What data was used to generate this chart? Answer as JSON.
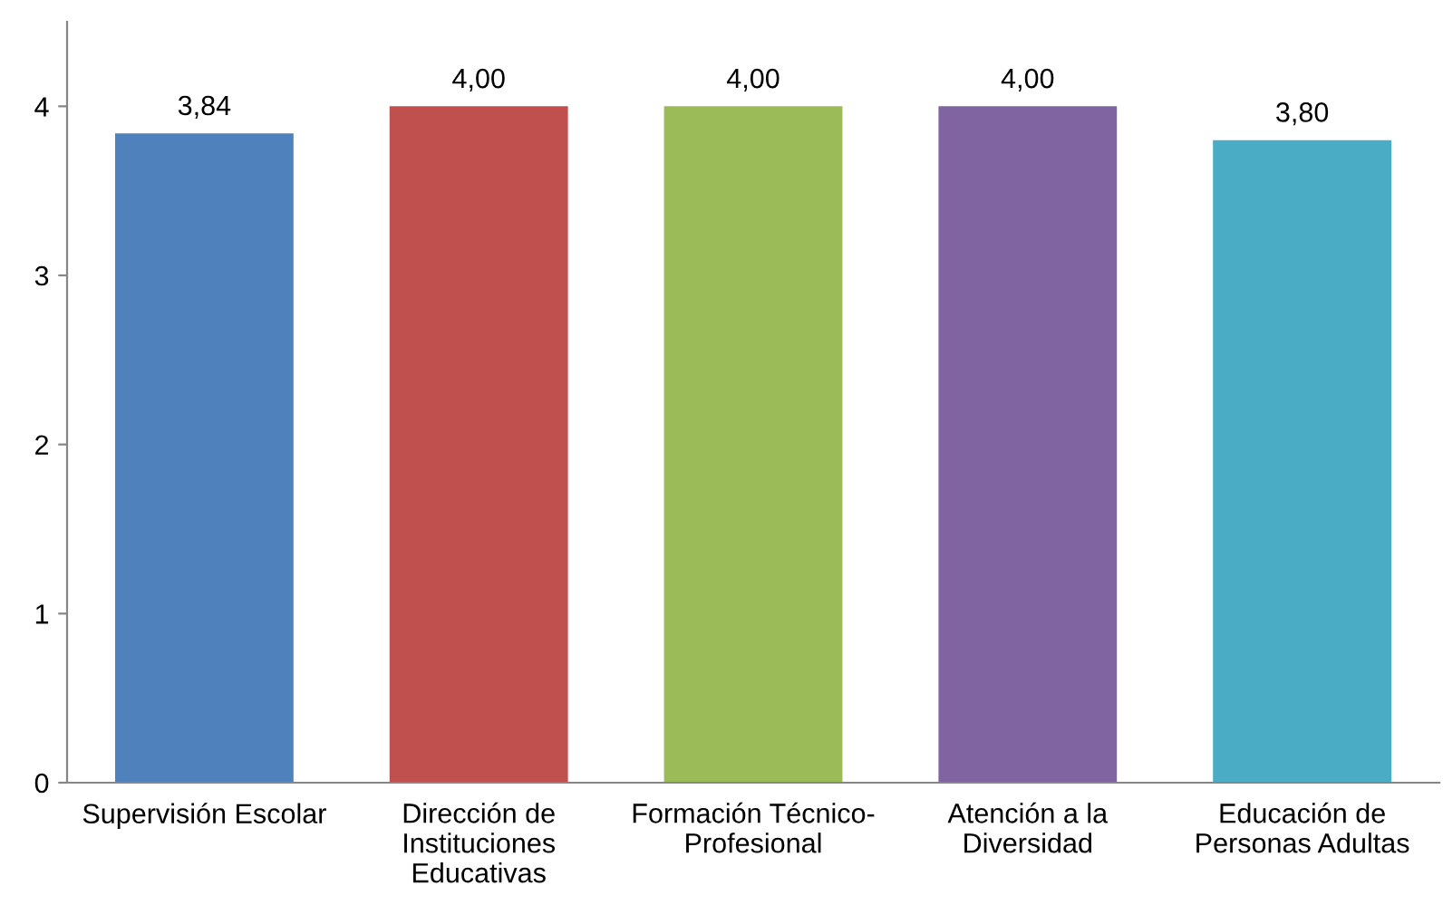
{
  "chart_data": {
    "type": "bar",
    "categories": [
      "Supervisión Escolar",
      "Dirección de\nInstituciones\nEducativas",
      "Formación Técnico-\nProfesional",
      "Atención a la\nDiversidad",
      "Educación de\nPersonas Adultas"
    ],
    "values": [
      3.84,
      4.0,
      4.0,
      4.0,
      3.8
    ],
    "colors": [
      "#4f81bd",
      "#c0504d",
      "#9bbb59",
      "#8064a2",
      "#4bacc6"
    ],
    "value_labels": [
      "3,84",
      "4,00",
      "4,00",
      "4,00",
      "3,80"
    ],
    "ylim": [
      0,
      4.5
    ],
    "yticks": [
      0,
      1,
      2,
      3,
      4
    ],
    "grid": false,
    "legend": false
  }
}
